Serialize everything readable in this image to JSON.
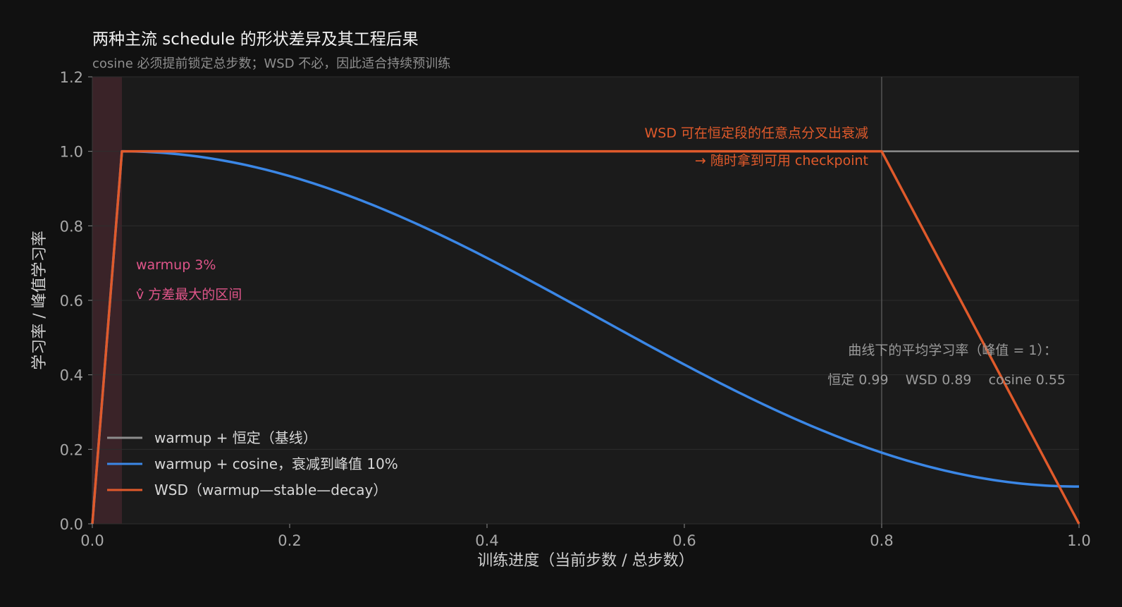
{
  "chart_data": {
    "type": "line",
    "title": "两种主流 schedule 的形状差异及其工程后果",
    "subtitle": "cosine 必须提前锁定总步数；WSD 不必，因此适合持续预训练",
    "xlabel": "训练进度（当前步数 / 总步数）",
    "ylabel": "学习率 / 峰值学习率",
    "xlim": [
      0,
      1
    ],
    "ylim": [
      0,
      1.2
    ],
    "x_ticks": [
      "0.0",
      "0.2",
      "0.4",
      "0.6",
      "0.8",
      "1.0"
    ],
    "y_ticks": [
      "0.0",
      "0.2",
      "0.4",
      "0.6",
      "0.8",
      "1.0",
      "1.2"
    ],
    "grid": "horizontal",
    "legend_position": "lower-left",
    "warmup_fraction": 0.03,
    "series": [
      {
        "name": "warmup + 恒定（基线）",
        "color": "#8c8c8c",
        "x": [
          0,
          0.03,
          1.0
        ],
        "y": [
          0,
          1.0,
          1.0
        ]
      },
      {
        "name": "warmup + cosine，衰减到峰值 10%",
        "color": "#3b87e6",
        "x": [
          0,
          0.03,
          0.1,
          0.2,
          0.3,
          0.4,
          0.5,
          0.6,
          0.7,
          0.8,
          0.9,
          1.0
        ],
        "y": [
          0,
          1.0,
          0.98,
          0.93,
          0.84,
          0.71,
          0.57,
          0.43,
          0.3,
          0.19,
          0.12,
          0.1
        ]
      },
      {
        "name": "WSD（warmup—stable—decay）",
        "color": "#e05a2b",
        "x": [
          0,
          0.03,
          0.8,
          1.0
        ],
        "y": [
          0,
          1.0,
          1.0,
          0.0
        ]
      }
    ],
    "annotations": {
      "warmup_line1": "warmup 3%",
      "warmup_line2": "v̂ 方差最大的区间",
      "wsd_line1": "WSD 可在恒定段的任意点分叉出衰减",
      "wsd_line2": "→ 随时拿到可用 checkpoint",
      "avg_line1": "曲线下的平均学习率（峰值 = 1）：",
      "avg_line2": "恒定 0.99    WSD 0.89    cosine 0.55"
    },
    "colors": {
      "background": "#111111",
      "plot_background": "#1b1b1b",
      "grid": "#2e2e2e",
      "warmup_band": "#3a2328",
      "warmup_text": "#e0558a",
      "wsd_text": "#e05a2b",
      "note_text": "#9a9a9a",
      "vline": "#555555"
    }
  }
}
